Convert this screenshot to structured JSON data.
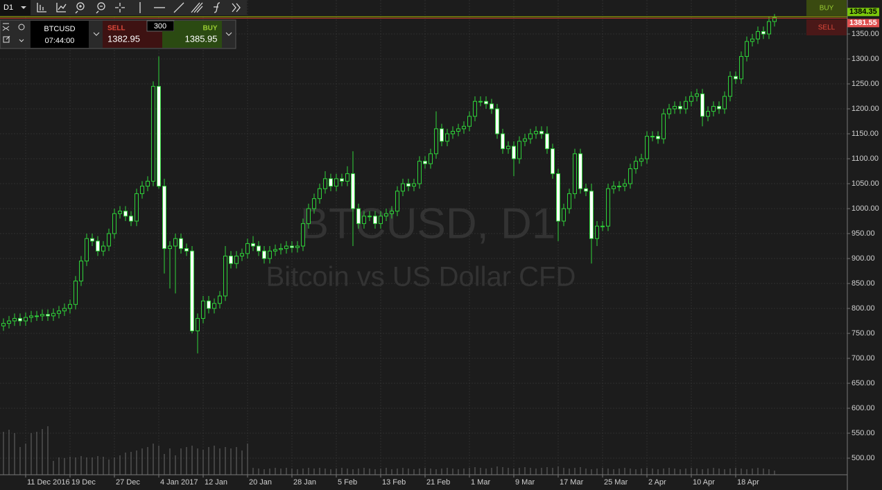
{
  "toolbar": {
    "timeframe": "D1"
  },
  "trade_panel": {
    "symbol": "BTCUSD",
    "time": "07:44:00",
    "sell_label": "SELL",
    "sell_price": "1382.95",
    "quantity": "300",
    "buy_label": "BUY",
    "buy_price": "1385.95"
  },
  "right_buttons": {
    "buy": "BUY",
    "sell": "SELL"
  },
  "chart_data": {
    "type": "candlestick",
    "title": "BTCUSD, D1",
    "subtitle": "Bitcoin vs US Dollar CFD",
    "categories": [
      null,
      null,
      null,
      null,
      "11 Dec 2016",
      null,
      null,
      null,
      null,
      null,
      null,
      null,
      "19 Dec",
      null,
      null,
      null,
      null,
      null,
      null,
      null,
      "27 Dec",
      null,
      null,
      null,
      null,
      null,
      null,
      null,
      "4 Jan 2017",
      null,
      null,
      null,
      null,
      null,
      null,
      null,
      "12 Jan",
      null,
      null,
      null,
      null,
      null,
      null,
      null,
      "20 Jan",
      null,
      null,
      null,
      null,
      null,
      null,
      null,
      "28 Jan",
      null,
      null,
      null,
      null,
      null,
      null,
      null,
      "5 Feb",
      null,
      null,
      null,
      null,
      null,
      null,
      null,
      "13 Feb",
      null,
      null,
      null,
      null,
      null,
      null,
      null,
      "21 Feb",
      null,
      null,
      null,
      null,
      null,
      null,
      null,
      "1 Mar",
      null,
      null,
      null,
      null,
      null,
      null,
      null,
      "9 Mar",
      null,
      null,
      null,
      null,
      null,
      null,
      null,
      "17 Mar",
      null,
      null,
      null,
      null,
      null,
      null,
      null,
      "25 Mar",
      null,
      null,
      null,
      null,
      null,
      null,
      null,
      "2 Apr",
      null,
      null,
      null,
      null,
      null,
      null,
      null,
      "10 Apr",
      null,
      null,
      null,
      null,
      null,
      null,
      null,
      "18 Apr",
      null,
      null,
      null,
      null,
      null,
      null,
      null
    ],
    "open": [
      765,
      770,
      775,
      780,
      775,
      782,
      785,
      785,
      788,
      785,
      790,
      795,
      800,
      808,
      855,
      895,
      940,
      935,
      915,
      925,
      950,
      990,
      995,
      985,
      975,
      1030,
      1045,
      1055,
      1245,
      1045,
      920,
      925,
      940,
      920,
      915,
      755,
      780,
      815,
      800,
      810,
      825,
      905,
      890,
      905,
      910,
      930,
      925,
      915,
      900,
      915,
      918,
      920,
      925,
      922,
      925,
      970,
      1000,
      1020,
      1040,
      1060,
      1045,
      1060,
      1055,
      1070,
      1000,
      970,
      985,
      985,
      970,
      985,
      990,
      995,
      1035,
      1050,
      1045,
      1050,
      1095,
      1090,
      1110,
      1160,
      1135,
      1150,
      1155,
      1160,
      1165,
      1185,
      1215,
      1215,
      1210,
      1200,
      1150,
      1120,
      1125,
      1100,
      1135,
      1140,
      1150,
      1155,
      1150,
      1120,
      1070,
      975,
      1000,
      1030,
      1110,
      1040,
      1035,
      940,
      965,
      965,
      1040,
      1045,
      1045,
      1050,
      1080,
      1095,
      1100,
      1145,
      1145,
      1140,
      1190,
      1200,
      1205,
      1200,
      1215,
      1225,
      1230,
      1185,
      1195,
      1205,
      1200,
      1225,
      1265,
      1260,
      1305,
      1335,
      1340,
      1355,
      1350,
      1375
    ],
    "high": [
      780,
      785,
      790,
      790,
      792,
      795,
      795,
      798,
      798,
      800,
      805,
      810,
      818,
      865,
      905,
      950,
      950,
      945,
      935,
      960,
      1000,
      1005,
      1005,
      995,
      1040,
      1055,
      1065,
      1255,
      1305,
      1060,
      935,
      950,
      950,
      930,
      925,
      790,
      825,
      825,
      820,
      835,
      925,
      915,
      915,
      920,
      940,
      945,
      935,
      925,
      925,
      928,
      930,
      935,
      935,
      935,
      980,
      1010,
      1030,
      1050,
      1075,
      1070,
      1070,
      1070,
      1085,
      1115,
      1010,
      995,
      995,
      995,
      995,
      1000,
      1005,
      1045,
      1060,
      1060,
      1060,
      1105,
      1105,
      1120,
      1195,
      1170,
      1160,
      1165,
      1170,
      1175,
      1195,
      1225,
      1225,
      1225,
      1220,
      1210,
      1160,
      1135,
      1135,
      1145,
      1150,
      1160,
      1165,
      1165,
      1165,
      1130,
      1080,
      1010,
      1040,
      1120,
      1120,
      1050,
      1050,
      975,
      975,
      1050,
      1055,
      1055,
      1060,
      1090,
      1105,
      1110,
      1155,
      1155,
      1155,
      1200,
      1210,
      1215,
      1215,
      1225,
      1235,
      1240,
      1240,
      1205,
      1215,
      1215,
      1235,
      1275,
      1275,
      1315,
      1345,
      1350,
      1365,
      1365,
      1385,
      1390
    ],
    "low": [
      755,
      760,
      765,
      765,
      765,
      772,
      775,
      775,
      775,
      775,
      780,
      785,
      790,
      798,
      845,
      885,
      925,
      905,
      905,
      915,
      940,
      980,
      975,
      965,
      965,
      1020,
      1035,
      1045,
      1040,
      870,
      840,
      830,
      910,
      905,
      750,
      710,
      770,
      790,
      790,
      800,
      815,
      880,
      880,
      895,
      900,
      915,
      905,
      890,
      890,
      905,
      908,
      910,
      912,
      912,
      915,
      960,
      990,
      1010,
      1030,
      1035,
      1035,
      1045,
      1045,
      925,
      960,
      960,
      975,
      960,
      960,
      975,
      980,
      985,
      1025,
      1035,
      1035,
      1040,
      1080,
      1080,
      1100,
      1125,
      1125,
      1140,
      1145,
      1150,
      1155,
      1175,
      1205,
      1200,
      1190,
      1140,
      1110,
      1110,
      1065,
      1090,
      1125,
      1130,
      1140,
      1140,
      1110,
      1060,
      935,
      965,
      990,
      1020,
      1030,
      1025,
      890,
      925,
      955,
      955,
      1030,
      1035,
      1035,
      1040,
      1070,
      1085,
      1090,
      1135,
      1130,
      1130,
      1180,
      1190,
      1190,
      1190,
      1205,
      1215,
      1165,
      1175,
      1185,
      1190,
      1190,
      1215,
      1250,
      1250,
      1295,
      1325,
      1330,
      1340,
      1340,
      1365
    ],
    "close": [
      770,
      775,
      780,
      775,
      782,
      785,
      785,
      788,
      785,
      790,
      795,
      800,
      808,
      855,
      895,
      940,
      935,
      915,
      925,
      950,
      990,
      995,
      985,
      975,
      1030,
      1045,
      1055,
      1245,
      1045,
      920,
      925,
      940,
      920,
      915,
      755,
      780,
      815,
      800,
      810,
      825,
      905,
      890,
      905,
      910,
      930,
      925,
      915,
      900,
      915,
      918,
      920,
      925,
      922,
      925,
      970,
      1000,
      1020,
      1040,
      1060,
      1045,
      1060,
      1055,
      1070,
      1000,
      970,
      985,
      985,
      970,
      985,
      990,
      995,
      1035,
      1050,
      1045,
      1050,
      1095,
      1090,
      1110,
      1160,
      1135,
      1150,
      1155,
      1160,
      1165,
      1185,
      1215,
      1215,
      1210,
      1200,
      1150,
      1120,
      1125,
      1100,
      1135,
      1140,
      1150,
      1155,
      1150,
      1120,
      1070,
      975,
      1000,
      1030,
      1110,
      1040,
      1035,
      940,
      965,
      965,
      1040,
      1045,
      1045,
      1050,
      1080,
      1095,
      1100,
      1145,
      1145,
      1140,
      1190,
      1200,
      1205,
      1200,
      1215,
      1225,
      1230,
      1185,
      1195,
      1205,
      1200,
      1225,
      1265,
      1260,
      1305,
      1335,
      1340,
      1355,
      1350,
      1375,
      1383
    ],
    "volume": [
      62,
      65,
      60,
      40,
      45,
      60,
      62,
      66,
      70,
      20,
      25,
      24,
      26,
      25,
      27,
      25,
      25,
      27,
      26,
      22,
      25,
      28,
      32,
      33,
      35,
      38,
      40,
      45,
      42,
      30,
      38,
      28,
      38,
      40,
      42,
      38,
      36,
      40,
      42,
      38,
      40,
      38,
      40,
      35,
      45,
      10,
      9,
      8,
      9,
      10,
      9,
      10,
      9,
      8,
      9,
      10,
      9,
      10,
      9,
      8,
      9,
      10,
      9,
      8,
      9,
      10,
      9,
      8,
      9,
      10,
      8,
      9,
      10,
      9,
      8,
      9,
      10,
      9,
      8,
      9,
      10,
      9,
      8,
      9,
      10,
      11,
      10,
      9,
      10,
      12,
      11,
      10,
      9,
      10,
      11,
      10,
      9,
      10,
      11,
      10,
      12,
      10,
      9,
      10,
      11,
      9,
      8,
      9,
      10,
      9,
      8,
      9,
      10,
      9,
      8,
      9,
      10,
      9,
      8,
      9,
      10,
      9,
      8,
      9,
      10,
      9,
      8,
      9,
      10,
      9,
      8,
      9,
      10,
      9,
      8,
      9,
      10,
      9,
      8,
      6
    ],
    "ylim": [
      466.7,
      1418.1
    ],
    "yticks": [
      {
        "value": 500,
        "label": "500.00"
      },
      {
        "value": 550,
        "label": "550.00"
      },
      {
        "value": 600,
        "label": "600.00"
      },
      {
        "value": 650,
        "label": "650.00"
      },
      {
        "value": 700,
        "label": "700.00"
      },
      {
        "value": 750,
        "label": "750.00"
      },
      {
        "value": 800,
        "label": "800.00"
      },
      {
        "value": 850,
        "label": "850.00"
      },
      {
        "value": 900,
        "label": "900.00"
      },
      {
        "value": 950,
        "label": "950.00"
      },
      {
        "value": 1000,
        "label": "1000.00"
      },
      {
        "value": 1050,
        "label": "1050.00"
      },
      {
        "value": 1100,
        "label": "1100.00"
      },
      {
        "value": 1150,
        "label": "1150.00"
      },
      {
        "value": 1200,
        "label": "1200.00"
      },
      {
        "value": 1250,
        "label": "1250.00"
      },
      {
        "value": 1300,
        "label": "1300.00"
      },
      {
        "value": 1350,
        "label": "1350.00"
      }
    ],
    "grid": true,
    "up_fill": "#1c1c1c",
    "down_fill": "#ffffff",
    "candle_color": "#2fd43a",
    "volume_color": "#6a6a6a",
    "price_lines": [
      {
        "value": 1384.35,
        "color": "#b8c400"
      },
      {
        "value": 1381.55,
        "color": "#c0392b"
      }
    ]
  }
}
